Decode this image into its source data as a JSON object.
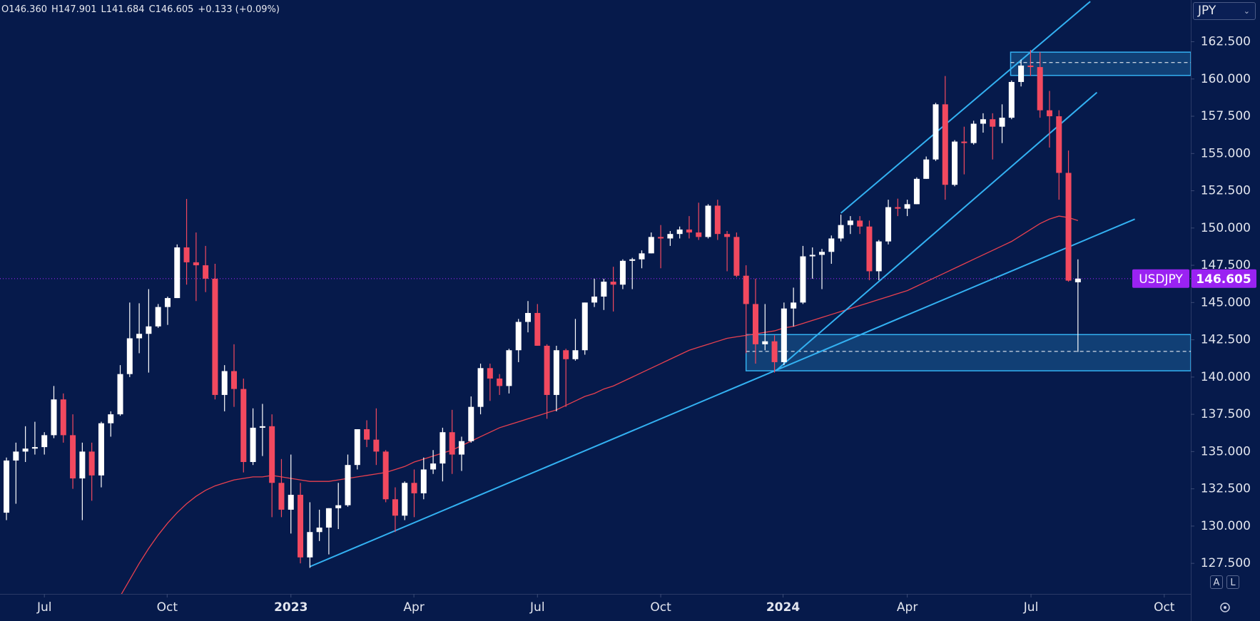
{
  "header": {
    "ohlc": [
      "O146.360",
      "H147.901",
      "L141.684",
      "C146.605",
      "+0.133 (+0.09%)"
    ],
    "currency": "JPY",
    "buttons": [
      "A",
      "L"
    ]
  },
  "chart_data": {
    "type": "candlestick",
    "xlim": [
      -0.68,
      124.9
    ],
    "ylim": [
      125.45,
      165.3
    ],
    "xticks": [
      {
        "value": 4.0,
        "label": "Jul"
      },
      {
        "value": 16.95,
        "label": "Oct"
      },
      {
        "value": 30.0,
        "label": "2023"
      },
      {
        "value": 42.97,
        "label": "Apr"
      },
      {
        "value": 56.0,
        "label": "Jul"
      },
      {
        "value": 69.0,
        "label": "Oct"
      },
      {
        "value": 81.9,
        "label": "2024"
      },
      {
        "value": 95.0,
        "label": "Apr"
      },
      {
        "value": 108.05,
        "label": "Jul"
      },
      {
        "value": 122.1,
        "label": "Oct"
      }
    ],
    "yticks": [
      {
        "value": 127.5,
        "label": "127.500"
      },
      {
        "value": 130,
        "label": "130.000"
      },
      {
        "value": 132.5,
        "label": "132.500"
      },
      {
        "value": 135,
        "label": "135.000"
      },
      {
        "value": 137.5,
        "label": "137.500"
      },
      {
        "value": 140,
        "label": "140.000"
      },
      {
        "value": 142.5,
        "label": "142.500"
      },
      {
        "value": 145,
        "label": "145.000"
      },
      {
        "value": 147.5,
        "label": "147.500"
      },
      {
        "value": 150,
        "label": "150.000"
      },
      {
        "value": 152.5,
        "label": "152.500"
      },
      {
        "value": 155,
        "label": "155.000"
      },
      {
        "value": 157.5,
        "label": "157.500"
      },
      {
        "value": 160,
        "label": "160.000"
      },
      {
        "value": 162.5,
        "label": "162.500"
      }
    ],
    "grid": false,
    "up_color": "#ffffff",
    "down_color": "#f2495f",
    "x": [
      0,
      1,
      2,
      3,
      4,
      5,
      6,
      7,
      8,
      9,
      10,
      11,
      12,
      13,
      14,
      15,
      16,
      17,
      18,
      19,
      20,
      21,
      22,
      23,
      24,
      25,
      26,
      27,
      28,
      29,
      30,
      31,
      32,
      33,
      34,
      35,
      36,
      37,
      38,
      39,
      40,
      41,
      42,
      43,
      44,
      45,
      46,
      47,
      48,
      49,
      50,
      51,
      52,
      53,
      54,
      55,
      56,
      57,
      58,
      59,
      60,
      61,
      62,
      63,
      64,
      65,
      66,
      67,
      68,
      69,
      70,
      71,
      72,
      73,
      74,
      75,
      76,
      77,
      78,
      79,
      80,
      81,
      82,
      83,
      84,
      85,
      86,
      87,
      88,
      89,
      90,
      91,
      92,
      93,
      94,
      95,
      96,
      97,
      98,
      99,
      100,
      101,
      102,
      103,
      104,
      105,
      106,
      107,
      108,
      109,
      110,
      111,
      112,
      113
    ],
    "series": [
      {
        "name": "USDJPY",
        "open": [
          130.9,
          134.4,
          135.0,
          135.2,
          135.3,
          136.1,
          138.5,
          136.1,
          133.2,
          135.0,
          133.4,
          136.9,
          137.5,
          140.2,
          142.6,
          142.9,
          143.4,
          144.7,
          145.3,
          148.7,
          147.7,
          147.5,
          146.6,
          138.8,
          140.4,
          139.2,
          134.3,
          136.6,
          136.7,
          132.9,
          131.1,
          132.1,
          127.9,
          129.6,
          129.9,
          131.2,
          131.4,
          134.1,
          136.5,
          135.8,
          135.0,
          131.8,
          130.7,
          132.9,
          132.2,
          133.8,
          134.2,
          136.3,
          134.8,
          135.7,
          138.0,
          140.6,
          139.9,
          139.4,
          141.8,
          143.7,
          144.3,
          142.1,
          138.8,
          141.8,
          141.2,
          141.8,
          145.0,
          145.4,
          146.4,
          146.2,
          147.8,
          147.9,
          148.3,
          149.4,
          149.3,
          149.6,
          149.9,
          149.7,
          149.4,
          151.5,
          149.6,
          149.4,
          146.8,
          144.9,
          142.2,
          142.4,
          141.0,
          144.6,
          145.0,
          148.1,
          148.2,
          148.4,
          149.3,
          150.2,
          150.5,
          150.1,
          147.1,
          149.1,
          151.4,
          151.3,
          151.6,
          153.3,
          154.6,
          158.3,
          152.9,
          155.8,
          155.7,
          157.0,
          157.3,
          156.8,
          157.4,
          159.8,
          160.9,
          160.8,
          157.9,
          157.5,
          153.7,
          146.36
        ],
        "high": [
          134.6,
          135.6,
          136.7,
          137.0,
          136.3,
          139.4,
          138.9,
          137.5,
          135.6,
          135.6,
          137.0,
          137.7,
          140.8,
          145.0,
          144.95,
          145.9,
          144.9,
          145.4,
          148.9,
          151.95,
          149.7,
          148.8,
          147.6,
          140.8,
          142.2,
          139.9,
          137.9,
          138.2,
          137.5,
          134.5,
          134.8,
          132.9,
          131.6,
          131.1,
          131.2,
          132.9,
          134.8,
          136.5,
          137.1,
          137.9,
          135.1,
          132.6,
          133.0,
          133.8,
          134.6,
          135.1,
          136.6,
          137.8,
          136.0,
          138.7,
          140.9,
          140.9,
          140.2,
          141.9,
          143.9,
          145.1,
          144.9,
          142.2,
          142.1,
          141.9,
          143.9,
          145.0,
          146.6,
          146.6,
          147.4,
          147.9,
          148.0,
          148.5,
          149.7,
          150.2,
          149.8,
          150.1,
          150.8,
          151.7,
          151.6,
          151.9,
          149.8,
          149.7,
          147.5,
          146.6,
          144.9,
          142.8,
          145.0,
          146.0,
          148.8,
          148.7,
          148.6,
          149.5,
          150.9,
          150.8,
          150.8,
          150.5,
          149.2,
          151.9,
          151.97,
          151.9,
          153.4,
          154.8,
          158.4,
          160.2,
          155.9,
          156.8,
          157.2,
          157.7,
          157.7,
          158.3,
          159.9,
          161.3,
          161.95,
          161.8,
          159.2,
          157.9,
          155.2,
          147.901
        ],
        "low": [
          130.4,
          131.5,
          134.3,
          134.8,
          134.8,
          135.9,
          135.6,
          132.5,
          130.4,
          131.7,
          132.6,
          136.0,
          137.4,
          140.0,
          141.6,
          140.3,
          143.3,
          143.5,
          145.3,
          146.2,
          145.1,
          145.7,
          138.5,
          137.7,
          138.0,
          133.6,
          134.1,
          134.7,
          130.6,
          130.6,
          129.5,
          127.5,
          127.2,
          129.0,
          128.1,
          129.8,
          131.3,
          133.8,
          135.3,
          134.1,
          131.6,
          129.6,
          130.4,
          130.6,
          131.8,
          133.5,
          133.0,
          133.5,
          133.7,
          135.6,
          137.5,
          138.4,
          138.8,
          138.9,
          141.0,
          143.0,
          142.1,
          137.2,
          137.7,
          138.0,
          141.1,
          141.5,
          144.7,
          144.5,
          144.4,
          145.9,
          145.9,
          147.3,
          148.3,
          147.3,
          148.8,
          149.3,
          149.3,
          149.2,
          149.3,
          149.2,
          147.1,
          146.7,
          141.6,
          140.9,
          141.8,
          140.3,
          140.8,
          143.4,
          144.9,
          146.6,
          145.9,
          147.6,
          149.1,
          149.6,
          149.6,
          146.5,
          146.5,
          148.9,
          150.8,
          150.8,
          151.6,
          153.3,
          154.5,
          151.9,
          152.8,
          153.6,
          155.6,
          156.4,
          154.6,
          155.7,
          157.3,
          159.5,
          160.2,
          157.4,
          155.4,
          151.9,
          146.4,
          141.684
        ],
        "close": [
          134.4,
          135.0,
          135.2,
          135.3,
          136.1,
          138.5,
          136.1,
          133.2,
          135.0,
          133.4,
          136.9,
          137.5,
          140.2,
          142.6,
          142.9,
          143.4,
          144.7,
          145.3,
          148.7,
          147.7,
          147.5,
          146.6,
          138.8,
          140.4,
          139.2,
          134.3,
          136.6,
          136.7,
          132.9,
          131.1,
          132.1,
          127.9,
          129.6,
          129.9,
          131.2,
          131.4,
          134.1,
          136.5,
          135.8,
          135.0,
          131.8,
          130.7,
          132.9,
          132.2,
          133.8,
          134.2,
          136.3,
          134.8,
          135.7,
          138.0,
          140.6,
          139.9,
          139.4,
          141.8,
          143.7,
          144.3,
          142.1,
          138.8,
          141.8,
          141.2,
          141.8,
          145.0,
          145.4,
          146.4,
          146.2,
          147.8,
          147.9,
          148.3,
          149.4,
          149.3,
          149.6,
          149.9,
          149.7,
          149.4,
          151.5,
          149.6,
          149.4,
          146.8,
          144.9,
          142.2,
          142.4,
          141.0,
          144.6,
          145.0,
          148.1,
          148.2,
          148.4,
          149.3,
          150.2,
          150.5,
          150.1,
          147.1,
          149.1,
          151.4,
          151.3,
          151.6,
          153.3,
          154.6,
          158.3,
          152.9,
          155.8,
          155.7,
          157.0,
          157.3,
          156.8,
          157.4,
          159.8,
          160.9,
          160.8,
          157.9,
          157.5,
          153.7,
          146.47,
          146.605
        ]
      }
    ],
    "moving_average": {
      "color": "#e8404f",
      "values": [
        null,
        null,
        null,
        null,
        null,
        null,
        null,
        null,
        null,
        null,
        null,
        null,
        125.3,
        126.4,
        127.5,
        128.5,
        129.4,
        130.2,
        130.9,
        131.5,
        132.0,
        132.4,
        132.7,
        132.9,
        133.1,
        133.2,
        133.3,
        133.3,
        133.4,
        133.3,
        133.2,
        133.1,
        133.0,
        133.0,
        133.0,
        133.1,
        133.2,
        133.3,
        133.4,
        133.5,
        133.6,
        133.8,
        134.0,
        134.3,
        134.5,
        134.7,
        134.9,
        135.1,
        135.4,
        135.7,
        136.0,
        136.3,
        136.6,
        136.8,
        137.0,
        137.2,
        137.4,
        137.6,
        137.8,
        138.1,
        138.4,
        138.7,
        138.9,
        139.2,
        139.4,
        139.7,
        140.0,
        140.3,
        140.6,
        140.9,
        141.2,
        141.5,
        141.8,
        142.0,
        142.2,
        142.4,
        142.6,
        142.7,
        142.8,
        142.9,
        143.0,
        143.1,
        143.3,
        143.4,
        143.6,
        143.8,
        144.0,
        144.2,
        144.4,
        144.6,
        144.8,
        145.0,
        145.2,
        145.4,
        145.6,
        145.8,
        146.1,
        146.4,
        146.7,
        147.0,
        147.3,
        147.6,
        147.9,
        148.2,
        148.5,
        148.8,
        149.1,
        149.5,
        149.9,
        150.3,
        150.6,
        150.8,
        150.7,
        150.5
      ]
    },
    "trendlines": [
      {
        "x": [
          32.0,
          119.0
        ],
        "y": [
          127.28,
          150.6
        ]
      },
      {
        "x": [
          81.1,
          115.0
        ],
        "y": [
          140.4,
          159.1
        ]
      },
      {
        "x": [
          88.0,
          114.3
        ],
        "y": [
          151.0,
          165.2
        ]
      }
    ],
    "trend_color": "#33b1f2",
    "zones": [
      {
        "x": [
          105.9,
          124.9
        ],
        "y": [
          160.24,
          161.8
        ],
        "mid": 161.1
      },
      {
        "x": [
          78.0,
          124.9
        ],
        "y": [
          140.42,
          142.85
        ],
        "mid": 141.72
      }
    ],
    "last_price": {
      "value": 146.605,
      "label": "146.605"
    },
    "last_color": "#9a22f2"
  }
}
